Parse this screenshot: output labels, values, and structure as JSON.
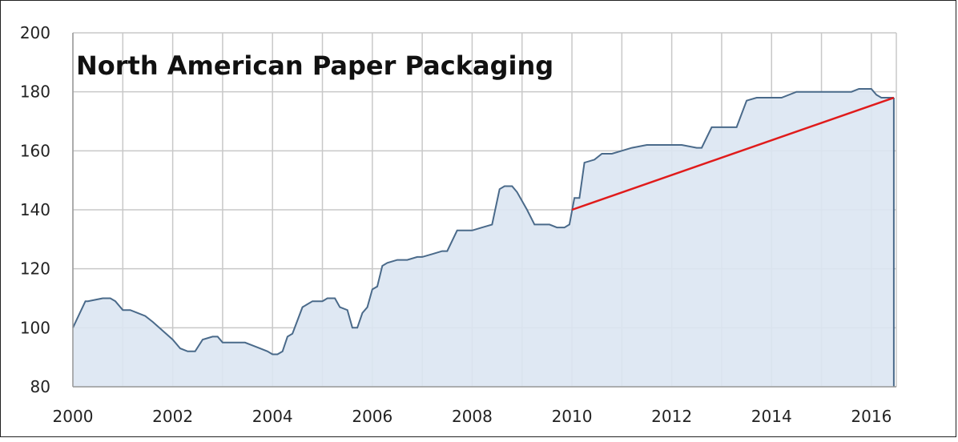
{
  "chart_data": {
    "type": "area",
    "title": "North American Paper Packaging",
    "xlabel": "",
    "ylabel": "",
    "xlim": [
      2000,
      2016.5
    ],
    "ylim": [
      80,
      200
    ],
    "x_ticks": [
      "2000",
      "2002",
      "2004",
      "2006",
      "2008",
      "2010",
      "2012",
      "2014",
      "2016"
    ],
    "y_ticks": [
      "80",
      "100",
      "120",
      "140",
      "160",
      "180",
      "200"
    ],
    "grid": true,
    "colors": {
      "line": "#4a6a8a",
      "fill": "#dce6f2",
      "trend": "#e01b1b",
      "grid": "#c8c8c8"
    },
    "series": [
      {
        "x": [
          2000.0,
          2000.25,
          2000.3,
          2000.6,
          2000.75,
          2000.85,
          2001.0,
          2001.15,
          2001.3,
          2001.45,
          2001.6,
          2001.8,
          2002.0,
          2002.15,
          2002.3,
          2002.4,
          2002.45,
          2002.6,
          2002.8,
          2002.9,
          2003.0,
          2003.3,
          2003.45,
          2003.6,
          2003.75,
          2003.9,
          2004.0,
          2004.1,
          2004.2,
          2004.3,
          2004.4,
          2004.6,
          2004.8,
          2004.95,
          2005.0,
          2005.1,
          2005.25,
          2005.35,
          2005.5,
          2005.6,
          2005.7,
          2005.8,
          2005.9,
          2006.0,
          2006.1,
          2006.2,
          2006.3,
          2006.5,
          2006.7,
          2006.9,
          2007.0,
          2007.2,
          2007.4,
          2007.5,
          2007.7,
          2007.9,
          2008.0,
          2008.2,
          2008.4,
          2008.55,
          2008.65,
          2008.8,
          2008.9,
          2009.1,
          2009.25,
          2009.45,
          2009.55,
          2009.7,
          2009.85,
          2009.95,
          2010.05,
          2010.15,
          2010.25,
          2010.45,
          2010.6,
          2010.8,
          2011.0,
          2011.2,
          2011.5,
          2011.8,
          2012.0,
          2012.2,
          2012.5,
          2012.6,
          2012.8,
          2013.0,
          2013.2,
          2013.3,
          2013.5,
          2013.7,
          2014.0,
          2014.2,
          2014.5,
          2014.8,
          2015.0,
          2015.3,
          2015.6,
          2015.75,
          2015.9,
          2016.0,
          2016.1,
          2016.2,
          2016.3,
          2016.45
        ],
        "y": [
          100,
          109,
          109,
          110,
          110,
          109,
          106,
          106,
          105,
          104,
          102,
          99,
          96,
          93,
          92,
          92,
          92,
          96,
          97,
          97,
          95,
          95,
          95,
          94,
          93,
          92,
          91,
          91,
          92,
          97,
          98,
          107,
          109,
          109,
          109,
          110,
          110,
          107,
          106,
          100,
          100,
          105,
          107,
          113,
          114,
          121,
          122,
          123,
          123,
          124,
          124,
          125,
          126,
          126,
          133,
          133,
          133,
          134,
          135,
          147,
          148,
          148,
          146,
          140,
          135,
          135,
          135,
          134,
          134,
          135,
          144,
          144,
          156,
          157,
          159,
          159,
          160,
          161,
          162,
          162,
          162,
          162,
          161,
          161,
          168,
          168,
          168,
          168,
          177,
          178,
          178,
          178,
          180,
          180,
          180,
          180,
          180,
          181,
          181,
          181,
          179,
          178,
          178,
          178
        ]
      }
    ],
    "trendline": {
      "x": [
        2010.0,
        2016.45
      ],
      "y": [
        140,
        178
      ]
    }
  }
}
